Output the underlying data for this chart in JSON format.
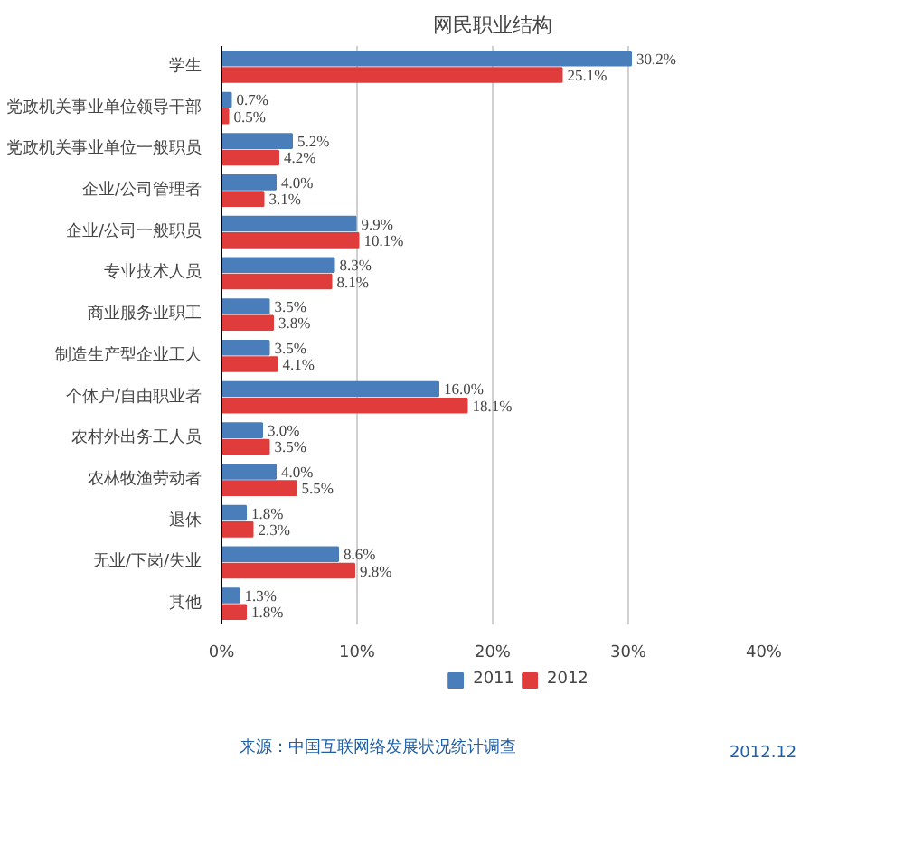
{
  "chart_data": {
    "type": "bar",
    "orientation": "horizontal",
    "title": "网民职业结构",
    "categories": [
      "学生",
      "党政机关事业单位领导干部",
      "党政机关事业单位一般职员",
      "企业/公司管理者",
      "企业/公司一般职员",
      "专业技术人员",
      "商业服务业职工",
      "制造生产型企业工人",
      "个体户/自由职业者",
      "农村外出务工人员",
      "农林牧渔劳动者",
      "退休",
      "无业/下岗/失业",
      "其他"
    ],
    "series": [
      {
        "name": "2011",
        "color": "#4a7ebb",
        "values": [
          30.2,
          0.7,
          5.2,
          4.0,
          9.9,
          8.3,
          3.5,
          3.5,
          16.0,
          3.0,
          4.0,
          1.8,
          8.6,
          1.3
        ],
        "value_labels": [
          "30.2%",
          "0.7%",
          "5.2%",
          "4.0%",
          "9.9%",
          "8.3%",
          "3.5%",
          "3.5%",
          "16.0%",
          "3.0%",
          "4.0%",
          "1.8%",
          "8.6%",
          "1.3%"
        ]
      },
      {
        "name": "2012",
        "color": "#e03c3c",
        "values": [
          25.1,
          0.5,
          4.2,
          3.1,
          10.1,
          8.1,
          3.8,
          4.1,
          18.1,
          3.5,
          5.5,
          2.3,
          9.8,
          1.8
        ],
        "value_labels": [
          "25.1%",
          "0.5%",
          "4.2%",
          "3.1%",
          "10.1%",
          "8.1%",
          "3.8%",
          "4.1%",
          "18.1%",
          "3.5%",
          "5.5%",
          "2.3%",
          "9.8%",
          "1.8%"
        ]
      }
    ],
    "xlim": [
      0,
      40
    ],
    "xticks": [
      {
        "value": 0,
        "label": "0%"
      },
      {
        "value": 10,
        "label": "10%"
      },
      {
        "value": 20,
        "label": "20%"
      },
      {
        "value": 30,
        "label": "30%"
      },
      {
        "value": 40,
        "label": "40%"
      }
    ],
    "grid": "x",
    "legend": "bottom",
    "annotations": [
      "来源：中国互联网络发展状况统计调查",
      "2012.12"
    ]
  }
}
